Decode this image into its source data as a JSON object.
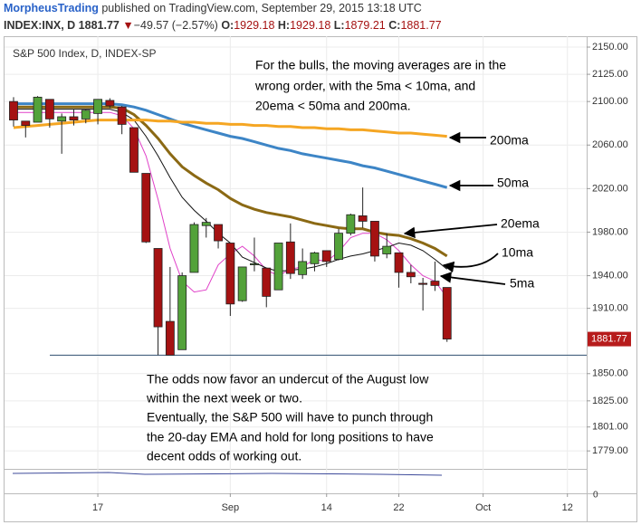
{
  "header": {
    "publisher": "MorpheusTrading",
    "published": "published on TradingView.com, September 29, 2015 13:18 UTC",
    "symbol": "INDEX:INX, D",
    "last": "1881.77",
    "change_arrow": "▼",
    "change": "−49.57 (−2.57%)",
    "o_label": "O:",
    "o_value": "1929.18",
    "h_label": "H:",
    "h_value": "1929.18",
    "l_label": "L:",
    "l_value": "1879.21",
    "c_label": "C:",
    "c_value": "1881.77"
  },
  "chart_data": {
    "type": "candlestick",
    "title": "S&P 500 Index, D, INDEX-SP",
    "open": [
      2100,
      2082,
      2081,
      2102,
      2082,
      2086,
      2084,
      2089,
      2101,
      2095,
      2076,
      2034,
      1965,
      1898,
      1872,
      1943,
      1986,
      1987,
      1970,
      1917,
      1950,
      1947,
      1927,
      1971,
      1941,
      1951,
      1963,
      1955,
      1979,
      1995,
      1990,
      1960,
      1961,
      1943,
      1933,
      1935,
      1929.18
    ],
    "high": [
      2104,
      2082,
      2105,
      2102,
      2089,
      2093,
      2093,
      2102,
      2103,
      2096,
      2076,
      2034,
      1965,
      1948,
      1943,
      1989,
      1993,
      1987,
      1970,
      1948,
      1975,
      1947,
      1970,
      1988,
      1965,
      1962,
      1963,
      1983,
      1997,
      2021,
      1990,
      1979,
      1961,
      1950,
      1938,
      1953,
      1929.18
    ],
    "low": [
      2077,
      2067,
      2081,
      2076,
      2052,
      2078,
      2080,
      2079,
      2094,
      2070,
      2035,
      1970,
      1867,
      1867,
      1872,
      1943,
      1975,
      1965,
      1903,
      1916,
      1944,
      1911,
      1927,
      1937,
      1937,
      1944,
      1948,
      1954,
      1977,
      1984,
      1953,
      1956,
      1929,
      1933,
      1908,
      1926,
      1879.21
    ],
    "close": [
      2083,
      2078,
      2104,
      2084,
      2086,
      2083,
      2092,
      2102,
      2096,
      2079,
      2035,
      1971,
      1893,
      1867,
      1940,
      1987,
      1989,
      1972,
      1914,
      1948,
      1951,
      1921,
      1970,
      1942,
      1953,
      1961,
      1953,
      1979,
      1996,
      1990,
      1958,
      1967,
      1943,
      1939,
      1932,
      1931,
      1881.77
    ],
    "up_color": "#53a23a",
    "down_color": "#a51212",
    "series": [
      {
        "name": "5ma",
        "color": "#e040c8",
        "values": [
          2090,
          2090,
          2090,
          2090,
          2090,
          2090,
          2090,
          2090,
          2090,
          2087,
          2075,
          2050,
          2010,
          1965,
          1935,
          1925,
          1927,
          1950,
          1960,
          1967,
          1958,
          1945,
          1940,
          1946,
          1948,
          1955,
          1953,
          1962,
          1975,
          1979,
          1979,
          1973,
          1963,
          1950,
          1940,
          1935,
          1920
        ]
      },
      {
        "name": "10ma",
        "color": "#111111",
        "values": [
          2093,
          2093,
          2093,
          2093,
          2093,
          2093,
          2093,
          2093,
          2093,
          2090,
          2083,
          2068,
          2050,
          2030,
          2012,
          2000,
          1990,
          1979,
          1970,
          1957,
          1952,
          1947,
          1944,
          1945,
          1946,
          1948,
          1951,
          1955,
          1958,
          1960,
          1963,
          1966,
          1970,
          1968,
          1963,
          1955,
          1946
        ]
      },
      {
        "name": "20ema",
        "color": "#8b6914",
        "values": [
          2095,
          2095,
          2095,
          2095,
          2095,
          2095,
          2095,
          2095,
          2095,
          2094,
          2088,
          2078,
          2066,
          2052,
          2040,
          2032,
          2025,
          2019,
          2011,
          2005,
          2001,
          1998,
          1996,
          1994,
          1991,
          1988,
          1986,
          1984,
          1983,
          1983,
          1980,
          1978,
          1977,
          1974,
          1970,
          1965,
          1958
        ]
      },
      {
        "name": "50ma",
        "color": "#3d85c6",
        "values": [
          2098,
          2098,
          2098,
          2098,
          2098,
          2098,
          2098,
          2098,
          2098,
          2097,
          2095,
          2092,
          2088,
          2084,
          2080,
          2077,
          2074,
          2071,
          2068,
          2066,
          2063,
          2060,
          2057,
          2055,
          2052,
          2050,
          2048,
          2046,
          2044,
          2041,
          2039,
          2036,
          2033,
          2030,
          2027,
          2024,
          2021
        ]
      },
      {
        "name": "200ma",
        "color": "#f5a623",
        "values": [
          2076,
          2077,
          2078,
          2079,
          2080,
          2081,
          2082,
          2083,
          2083,
          2083,
          2083,
          2083,
          2082,
          2082,
          2081,
          2081,
          2080,
          2080,
          2079,
          2079,
          2078,
          2078,
          2077,
          2077,
          2076,
          2076,
          2075,
          2075,
          2074,
          2074,
          2073,
          2072,
          2071,
          2071,
          2070,
          2069,
          2068
        ]
      }
    ],
    "support_level": 1867,
    "last_price_color": "#b71c1c",
    "ylim": [
      1765,
      2160
    ],
    "yticks": [
      {
        "value": 2150,
        "label": "2150.00"
      },
      {
        "value": 2125,
        "label": "2125.00"
      },
      {
        "value": 2100,
        "label": "2100.00"
      },
      {
        "value": 2060,
        "label": "2060.00"
      },
      {
        "value": 2020,
        "label": "2020.00"
      },
      {
        "value": 1980,
        "label": "1980.00"
      },
      {
        "value": 1940,
        "label": "1940.00"
      },
      {
        "value": 1910,
        "label": "1910.00"
      },
      {
        "value": 1850,
        "label": "1850.00"
      },
      {
        "value": 1825,
        "label": "1825.00"
      },
      {
        "value": 1801,
        "label": "1801.00"
      },
      {
        "value": 1779,
        "label": "1779.00"
      }
    ],
    "xlim": [
      -0.75,
      47.6
    ],
    "xticks": [
      {
        "value": 7,
        "label": "17"
      },
      {
        "value": 18,
        "label": "Sep"
      },
      {
        "value": 26,
        "label": "14"
      },
      {
        "value": 32,
        "label": "22"
      },
      {
        "value": 39,
        "label": "Oct"
      },
      {
        "value": 46,
        "label": "12"
      }
    ],
    "grid": true,
    "indicator_axis_label": "0",
    "annotations": {
      "top": [
        "For the bulls, the moving averages are in the",
        "wrong order, with the 5ma < 10ma, and",
        "20ema < 50ma and 200ma."
      ],
      "bottom": [
        "The odds now favor an undercut of the August low",
        "within the next week or two.",
        "Eventually, the S&P 500 will have to punch through",
        "the 20-day EMA and hold for long positions to have",
        "decent odds of working out."
      ],
      "labels": [
        "200ma",
        "50ma",
        "20ema",
        "10ma",
        "5ma"
      ]
    }
  }
}
